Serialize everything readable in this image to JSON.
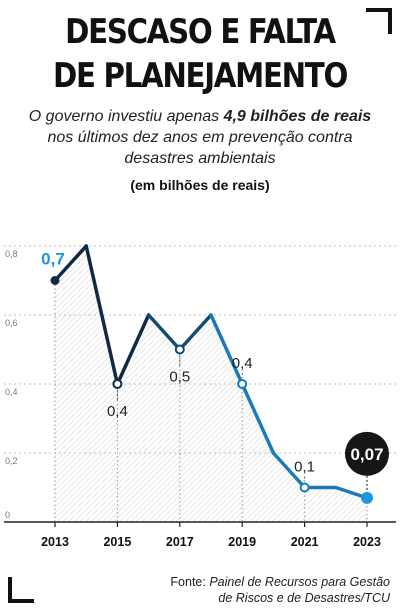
{
  "title_line1": "DESCASO E FALTA",
  "title_line2": "DE PLANEJAMENTO",
  "intro": {
    "pre": "O governo investiu apenas ",
    "bold": "4,9 bilhões de reais",
    "post": " nos últimos dez anos em prevenção contra desastres ambientais"
  },
  "unit_label": "(em bilhões de reais)",
  "source": {
    "prefix": "Fonte: ",
    "line1": "Painel de Recursos para Gestão",
    "line2": "de Riscos e de Desastres/TCU"
  },
  "colors": {
    "dark_navy": "#102a45",
    "blue": "#1b7ab8",
    "highlight_blue": "#1f97dd",
    "highlight_badge": "#161616",
    "grid": "#bdbdbd"
  },
  "chart_data": {
    "type": "line",
    "x": [
      2013,
      2014,
      2015,
      2016,
      2017,
      2018,
      2019,
      2020,
      2021,
      2022,
      2023
    ],
    "values": [
      0.7,
      0.8,
      0.4,
      0.6,
      0.5,
      0.6,
      0.4,
      0.2,
      0.1,
      0.1,
      0.07
    ],
    "ylim": [
      0,
      0.8
    ],
    "yticks": [
      "0",
      "0,2",
      "0,4",
      "0,6",
      "0,8"
    ],
    "xtick_labels": [
      "2013",
      "2015",
      "2017",
      "2019",
      "2021",
      "2023"
    ],
    "point_labels": [
      {
        "year": 2013,
        "text": "0,7"
      },
      {
        "year": 2015,
        "text": "0,4"
      },
      {
        "year": 2017,
        "text": "0,5"
      },
      {
        "year": 2019,
        "text": "0,4"
      },
      {
        "year": 2021,
        "text": "0,1"
      },
      {
        "year": 2023,
        "text": "0,07"
      }
    ],
    "grid": true,
    "area_fill": "hatched"
  }
}
